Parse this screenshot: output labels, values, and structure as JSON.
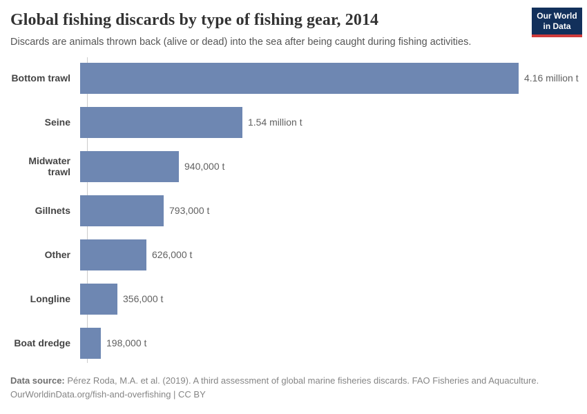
{
  "header": {
    "title": "Global fishing discards by type of fishing gear, 2014",
    "subtitle": "Discards are animals thrown back (alive or dead) into the sea after being caught during fishing activities.",
    "logo": {
      "line1": "Our World",
      "line2": "in Data",
      "bg_color": "#12305b",
      "accent_color": "#cf3b3b"
    }
  },
  "chart_data": {
    "type": "bar",
    "orientation": "horizontal",
    "title": "Global fishing discards by type of fishing gear, 2014",
    "categories": [
      "Bottom trawl",
      "Seine",
      "Midwater trawl",
      "Gillnets",
      "Other",
      "Longline",
      "Boat dredge"
    ],
    "values": [
      4160000,
      1540000,
      940000,
      793000,
      626000,
      356000,
      198000
    ],
    "value_labels": [
      "4.16 million t",
      "1.54 million t",
      "940,000 t",
      "793,000 t",
      "626,000 t",
      "356,000 t",
      "198,000 t"
    ],
    "unit": "t",
    "xlim": [
      0,
      4160000
    ],
    "bar_color": "#6e87b2",
    "grid": false,
    "legend": false
  },
  "footer": {
    "source_label": "Data source:",
    "source_text": " Pérez Roda, M.A. et al. (2019). A third assessment of global marine fisheries discards. FAO Fisheries and Aquaculture.",
    "line2": "OurWorldinData.org/fish-and-overfishing | CC BY"
  }
}
